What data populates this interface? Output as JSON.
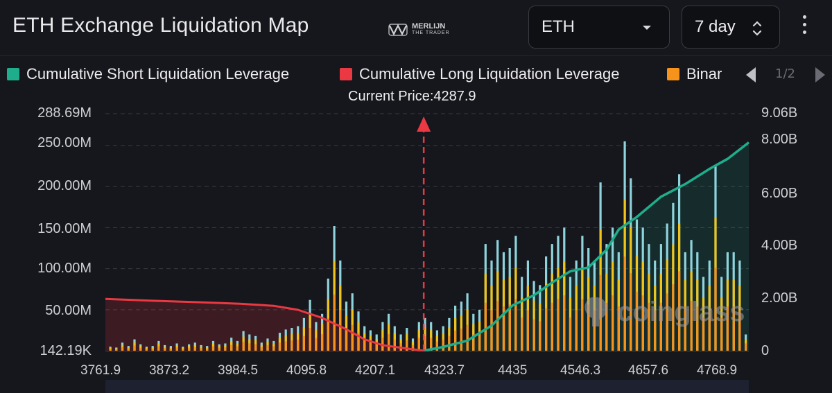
{
  "header": {
    "title": "ETH Exchange Liquidation Map",
    "logo": {
      "main": "MERLIJN",
      "sub": "THE TRADER"
    },
    "coin_select": {
      "value": "ETH"
    },
    "range_select": {
      "value": "7 day"
    }
  },
  "legend": {
    "items": [
      {
        "label": "Cumulative Short Liquidation Leverage",
        "color": "#1fae8c"
      },
      {
        "label": "Cumulative Long Liquidation Leverage",
        "color": "#ea3943"
      },
      {
        "label": "Binar",
        "color": "#f7931a"
      }
    ],
    "pager": "1/2"
  },
  "watermark": "coinglass",
  "chart_data": {
    "type": "bar",
    "current_price_label": "Current Price:4287.9",
    "current_price": 4287.9,
    "x_ticks": [
      "3761.9",
      "3873.2",
      "3984.5",
      "4095.8",
      "4207.1",
      "4323.7",
      "4435",
      "4546.3",
      "4657.6",
      "4768.9"
    ],
    "x_range": [
      3761.9,
      4825
    ],
    "y_left_ticks": [
      "288.69M",
      "250.00M",
      "200.00M",
      "150.00M",
      "100.00M",
      "50.00M",
      "142.19K"
    ],
    "y_left_range": [
      0.14219,
      288.69
    ],
    "y_left_unit": "M",
    "y_right_ticks": [
      "9.06B",
      "8.00B",
      "6.00B",
      "4.00B",
      "2.00B",
      "0"
    ],
    "y_right_range": [
      0,
      9.06
    ],
    "y_right_unit": "B",
    "colors": {
      "cyan": "#8fd3dc",
      "yellow": "#f0c419",
      "orange": "#f7931a",
      "short": "#1fae8c",
      "long": "#ea3943"
    },
    "cum_long": {
      "name": "Cumulative Long Liquidation Leverage",
      "x": [
        3761.9,
        3840,
        3920,
        3984.5,
        4040,
        4080,
        4120,
        4160,
        4190,
        4220,
        4250,
        4287.9
      ],
      "y": [
        2.05,
        1.98,
        1.92,
        1.86,
        1.78,
        1.62,
        1.3,
        0.85,
        0.45,
        0.22,
        0.12,
        0.0
      ]
    },
    "cum_short": {
      "name": "Cumulative Short Liquidation Leverage",
      "x": [
        4287.9,
        4320,
        4360,
        4400,
        4435,
        4470,
        4500,
        4530,
        4560,
        4590,
        4610,
        4640,
        4680,
        4720,
        4760,
        4790,
        4825
      ],
      "y": [
        0.0,
        0.15,
        0.4,
        1.0,
        1.8,
        2.2,
        2.7,
        3.15,
        3.3,
        4.0,
        4.8,
        5.3,
        6.1,
        6.6,
        7.2,
        7.6,
        8.25
      ]
    },
    "bars": {
      "note": "per-level liquidation volume in M (top of bar)",
      "x": [
        3770,
        3780,
        3790,
        3800,
        3810,
        3820,
        3830,
        3840,
        3850,
        3860,
        3870,
        3880,
        3890,
        3900,
        3910,
        3920,
        3930,
        3940,
        3950,
        3960,
        3970,
        3980,
        3990,
        4000,
        4010,
        4020,
        4030,
        4040,
        4050,
        4060,
        4070,
        4080,
        4090,
        4100,
        4110,
        4120,
        4130,
        4140,
        4150,
        4160,
        4170,
        4180,
        4190,
        4200,
        4210,
        4220,
        4230,
        4240,
        4250,
        4260,
        4270,
        4280,
        4290,
        4300,
        4310,
        4320,
        4330,
        4340,
        4350,
        4360,
        4370,
        4380,
        4390,
        4400,
        4410,
        4420,
        4430,
        4440,
        4450,
        4460,
        4470,
        4480,
        4490,
        4500,
        4510,
        4520,
        4530,
        4540,
        4550,
        4560,
        4570,
        4580,
        4590,
        4600,
        4610,
        4620,
        4630,
        4640,
        4650,
        4660,
        4670,
        4680,
        4690,
        4700,
        4710,
        4720,
        4730,
        4740,
        4750,
        4760,
        4770,
        4780,
        4790,
        4800,
        4810,
        4820
      ],
      "y": [
        5,
        4,
        10,
        6,
        14,
        8,
        5,
        6,
        12,
        7,
        6,
        9,
        5,
        8,
        10,
        7,
        6,
        12,
        8,
        9,
        16,
        12,
        24,
        20,
        18,
        10,
        15,
        12,
        22,
        26,
        28,
        30,
        40,
        62,
        35,
        45,
        88,
        152,
        110,
        60,
        70,
        48,
        30,
        25,
        20,
        35,
        45,
        30,
        20,
        28,
        15,
        35,
        40,
        35,
        25,
        30,
        40,
        55,
        60,
        70,
        45,
        50,
        130,
        110,
        135,
        120,
        125,
        140,
        90,
        110,
        85,
        80,
        115,
        130,
        140,
        150,
        90,
        110,
        140,
        125,
        110,
        205,
        130,
        150,
        120,
        255,
        210,
        160,
        150,
        130,
        110,
        130,
        155,
        180,
        215,
        120,
        135,
        120,
        90,
        110,
        225,
        90,
        120,
        120,
        110,
        20
      ]
    }
  }
}
